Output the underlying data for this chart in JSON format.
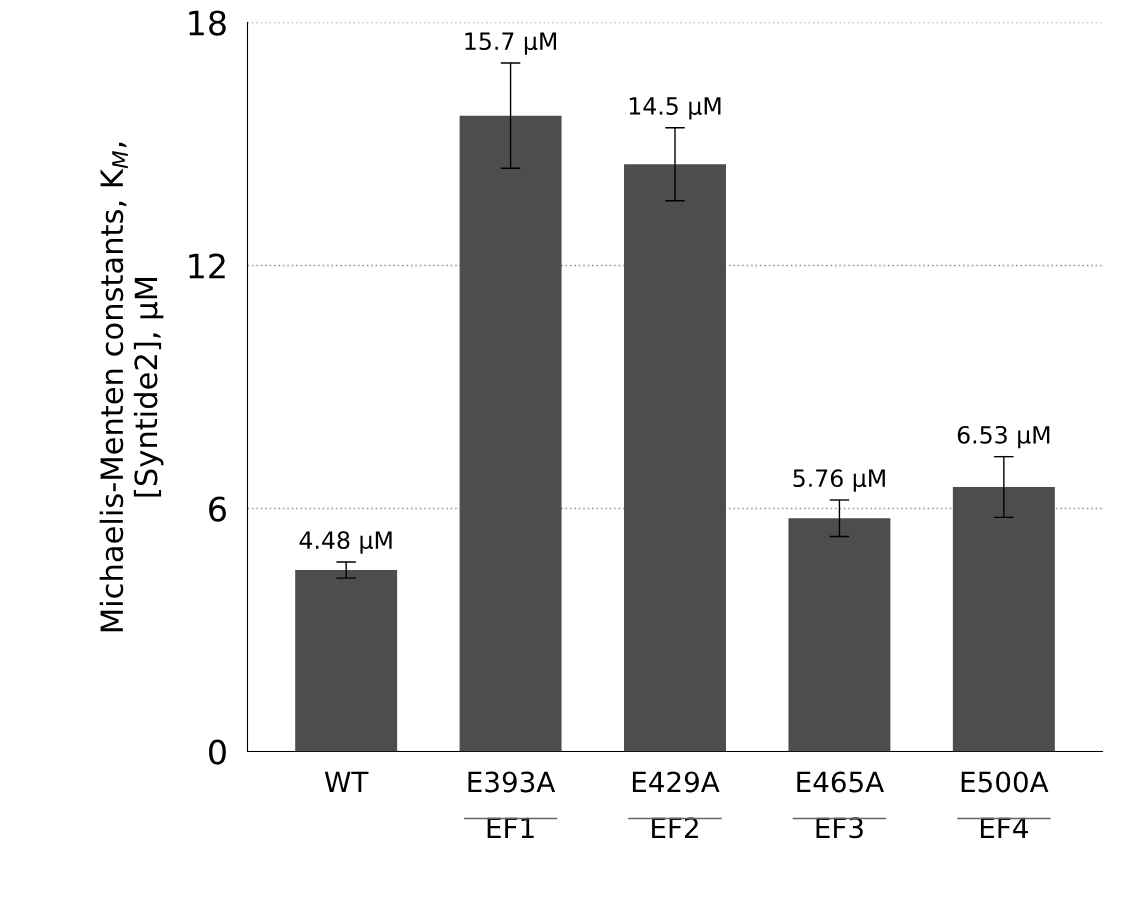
{
  "chart_data": {
    "type": "bar",
    "ylabel": "Michaelis-Menten constants, K$_{M}$,\n[Syntide2], µM",
    "categories": [
      "WT",
      "E393A\nEF1",
      "E429A\nEF2",
      "E465A\nEF3",
      "E500A\nEF4"
    ],
    "values": [
      4.48,
      15.7,
      14.5,
      5.76,
      6.53
    ],
    "errors": [
      0.2,
      1.3,
      0.9,
      0.45,
      0.75
    ],
    "value_labels": [
      "4.48 µM",
      "15.7 µM",
      "14.5 µM",
      "5.76 µM",
      "6.53 µM"
    ],
    "color": "#4d4d4d",
    "ylim": [
      0,
      18
    ],
    "yticks": [
      0,
      6,
      12,
      18
    ],
    "grid": "y"
  }
}
